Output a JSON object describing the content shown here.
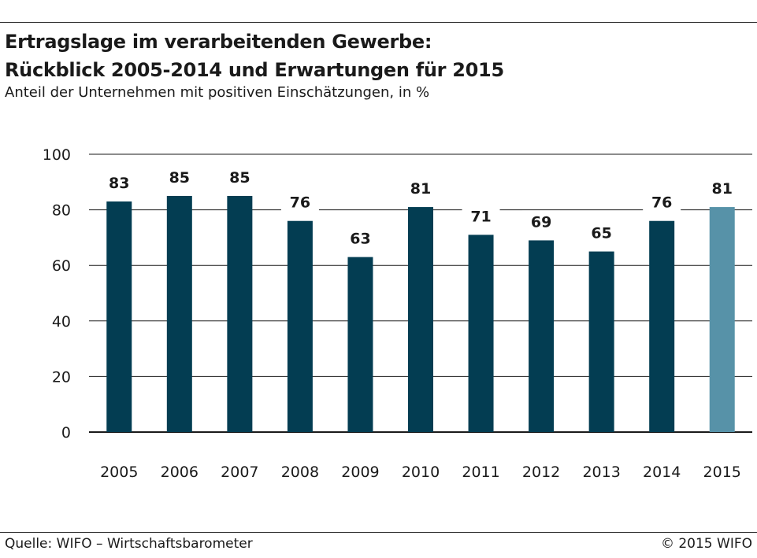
{
  "title_line1": "Ertragslage im verarbeitenden Gewerbe:",
  "title_line2": "Rückblick 2005-2014 und Erwartungen für 2015",
  "subtitle": "Anteil der Unternehmen mit positiven Einschätzungen, in %",
  "source": "Quelle: WIFO – Wirtschaftsbarometer",
  "copyright": "© 2015 WIFO",
  "colors": {
    "bar": "#033d52",
    "bar_highlight": "#5792a8",
    "gridline": "#1a1a1a"
  },
  "chart_data": {
    "type": "bar",
    "categories": [
      "2005",
      "2006",
      "2007",
      "2008",
      "2009",
      "2010",
      "2011",
      "2012",
      "2013",
      "2014",
      "2015"
    ],
    "values": [
      83,
      85,
      85,
      76,
      63,
      81,
      71,
      69,
      65,
      76,
      81
    ],
    "highlight_category": "2015",
    "ylim": [
      0,
      100
    ],
    "yticks": [
      0,
      20,
      40,
      60,
      80,
      100
    ],
    "grid": true,
    "data_labels": true
  }
}
